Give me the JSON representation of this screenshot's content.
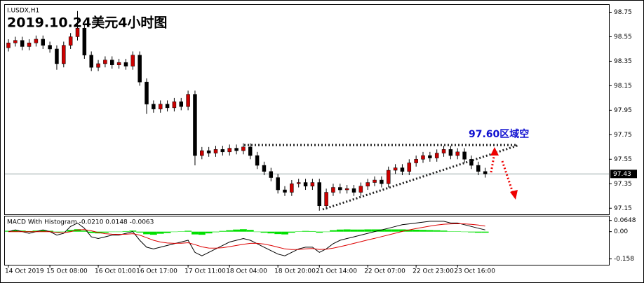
{
  "chart_data": [
    {
      "type": "candlestick",
      "symbol": "I.USDX,H1",
      "title": "2019.10.24美元4小时图",
      "annotation": "97.60区域空",
      "categories": [
        "14 Oct 2019",
        null,
        null,
        null,
        null,
        null,
        "15 Oct 08:00",
        null,
        null,
        null,
        null,
        null,
        null,
        "16 Oct 01:00",
        null,
        null,
        null,
        null,
        null,
        "16 Oct 17:00",
        null,
        null,
        null,
        null,
        null,
        null,
        "17 Oct 11:00",
        null,
        null,
        null,
        null,
        null,
        "18 Oct 04:00",
        null,
        null,
        null,
        null,
        null,
        null,
        "18 Oct 20:00",
        null,
        null,
        null,
        null,
        null,
        "21 Oct 14:00",
        null,
        null,
        null,
        null,
        null,
        null,
        "22 Oct 07:00",
        null,
        null,
        null,
        null,
        null,
        null,
        "22 Oct 23:00",
        null,
        null,
        null,
        null,
        null,
        "23 Oct 16:00",
        null,
        null,
        null,
        null
      ],
      "open": [
        98.46,
        98.5,
        98.52,
        98.47,
        98.5,
        98.53,
        98.48,
        98.45,
        98.33,
        98.48,
        98.55,
        98.62,
        98.4,
        98.3,
        98.33,
        98.36,
        98.32,
        98.34,
        98.31,
        98.4,
        98.18,
        98.0,
        97.96,
        98.0,
        97.97,
        98.02,
        97.98,
        98.08,
        97.58,
        97.62,
        97.6,
        97.63,
        97.61,
        97.64,
        97.62,
        97.65,
        97.58,
        97.5,
        97.45,
        97.4,
        97.3,
        97.28,
        97.35,
        97.36,
        97.33,
        97.36,
        97.17,
        97.28,
        97.32,
        97.3,
        97.31,
        97.28,
        97.33,
        97.36,
        97.38,
        97.35,
        97.46,
        97.48,
        97.45,
        97.52,
        97.55,
        97.58,
        97.56,
        97.6,
        97.63,
        97.58,
        97.61,
        97.55,
        97.5,
        97.45
      ],
      "high": [
        98.53,
        98.55,
        98.55,
        98.53,
        98.56,
        98.56,
        98.51,
        98.48,
        98.51,
        98.58,
        98.76,
        98.65,
        98.43,
        98.36,
        98.39,
        98.39,
        98.37,
        98.37,
        98.43,
        98.43,
        98.21,
        98.03,
        98.03,
        98.03,
        98.05,
        98.05,
        98.11,
        98.11,
        97.65,
        97.65,
        97.66,
        97.66,
        97.67,
        97.67,
        97.68,
        97.68,
        97.61,
        97.53,
        97.48,
        97.43,
        97.33,
        97.38,
        97.39,
        97.39,
        97.39,
        97.39,
        97.31,
        97.35,
        97.35,
        97.34,
        97.34,
        97.36,
        97.39,
        97.41,
        97.41,
        97.49,
        97.51,
        97.51,
        97.55,
        97.58,
        97.61,
        97.61,
        97.63,
        97.66,
        97.66,
        97.64,
        97.64,
        97.58,
        97.53,
        97.48
      ],
      "low": [
        98.43,
        98.47,
        98.44,
        98.44,
        98.47,
        98.45,
        98.42,
        98.28,
        98.3,
        98.45,
        98.52,
        98.37,
        98.27,
        98.27,
        98.3,
        98.29,
        98.29,
        98.28,
        98.28,
        98.15,
        97.92,
        97.93,
        97.93,
        97.94,
        97.94,
        97.95,
        97.95,
        97.5,
        97.55,
        97.57,
        97.57,
        97.58,
        97.58,
        97.59,
        97.59,
        97.55,
        97.47,
        97.42,
        97.37,
        97.27,
        97.25,
        97.25,
        97.32,
        97.3,
        97.3,
        97.13,
        97.14,
        97.25,
        97.27,
        97.27,
        97.25,
        97.25,
        97.3,
        97.33,
        97.32,
        97.32,
        97.43,
        97.42,
        97.42,
        97.49,
        97.52,
        97.53,
        97.53,
        97.57,
        97.55,
        97.55,
        97.52,
        97.47,
        97.42,
        97.4
      ],
      "close": [
        98.5,
        98.52,
        98.47,
        98.5,
        98.53,
        98.48,
        98.45,
        98.33,
        98.48,
        98.55,
        98.62,
        98.4,
        98.3,
        98.33,
        98.36,
        98.32,
        98.34,
        98.31,
        98.4,
        98.18,
        98.0,
        97.96,
        98.0,
        97.97,
        98.02,
        97.98,
        98.08,
        97.58,
        97.62,
        97.6,
        97.63,
        97.61,
        97.64,
        97.62,
        97.65,
        97.58,
        97.5,
        97.45,
        97.4,
        97.3,
        97.28,
        97.35,
        97.36,
        97.33,
        97.36,
        97.17,
        97.28,
        97.32,
        97.3,
        97.31,
        97.28,
        97.33,
        97.36,
        97.38,
        97.35,
        97.46,
        97.48,
        97.45,
        97.52,
        97.55,
        97.58,
        97.56,
        97.6,
        97.63,
        97.58,
        97.61,
        97.55,
        97.5,
        97.45,
        97.43
      ],
      "up_color": "#cc0000",
      "down_color": "#000000",
      "ylim": [
        97.1,
        98.81
      ],
      "yticks": [
        98.75,
        98.55,
        98.35,
        98.15,
        97.95,
        97.75,
        97.55,
        97.35,
        97.15
      ],
      "last_price": 97.43
    },
    {
      "type": "macd",
      "title": "MACD With Histogram -0.0210 0.0148 -0.0063",
      "histogram": {
        "color": "#00e000",
        "values": [
          0.005,
          0.008,
          0.006,
          0.003,
          0.006,
          0.008,
          0.005,
          -0.004,
          0.0,
          0.01,
          0.014,
          0.006,
          -0.008,
          -0.01,
          -0.006,
          -0.002,
          0.0,
          0.003,
          0.006,
          -0.005,
          -0.015,
          -0.018,
          -0.012,
          -0.008,
          -0.002,
          0.002,
          0.005,
          -0.016,
          -0.018,
          -0.01,
          -0.003,
          0.004,
          0.008,
          0.012,
          0.014,
          0.01,
          0.0,
          -0.006,
          -0.01,
          -0.014,
          -0.016,
          -0.006,
          0.002,
          0.004,
          0.003,
          -0.006,
          0.0,
          0.008,
          0.012,
          0.013,
          0.012,
          0.012,
          0.013,
          0.013,
          0.013,
          0.013,
          0.013,
          0.013,
          0.012,
          0.011,
          0.01,
          0.009,
          0.008,
          0.006,
          0.002,
          0.001,
          -0.002,
          -0.004,
          -0.006,
          -0.006
        ]
      },
      "series": [
        {
          "color": "#000000",
          "values": [
            0.0,
            0.01,
            0.0,
            -0.01,
            0.0,
            0.01,
            0.0,
            -0.02,
            -0.01,
            0.03,
            0.05,
            0.02,
            -0.03,
            -0.04,
            -0.03,
            -0.02,
            -0.02,
            -0.01,
            0.0,
            -0.05,
            -0.09,
            -0.1,
            -0.09,
            -0.08,
            -0.07,
            -0.06,
            -0.05,
            -0.12,
            -0.14,
            -0.12,
            -0.1,
            -0.08,
            -0.06,
            -0.05,
            -0.04,
            -0.05,
            -0.07,
            -0.09,
            -0.11,
            -0.13,
            -0.14,
            -0.12,
            -0.1,
            -0.09,
            -0.09,
            -0.12,
            -0.1,
            -0.07,
            -0.05,
            -0.04,
            -0.03,
            -0.02,
            -0.01,
            0.0,
            0.01,
            0.02,
            0.03,
            0.04,
            0.045,
            0.05,
            0.055,
            0.06,
            0.06,
            0.06,
            0.05,
            0.05,
            0.04,
            0.03,
            0.02,
            0.01
          ]
        },
        {
          "color": "#dd0000",
          "values": [
            0.0,
            0.0,
            0.0,
            0.0,
            0.0,
            0.0,
            0.0,
            -0.005,
            -0.007,
            0.0,
            0.01,
            0.012,
            0.005,
            -0.005,
            -0.012,
            -0.015,
            -0.016,
            -0.015,
            -0.012,
            -0.02,
            -0.035,
            -0.05,
            -0.06,
            -0.066,
            -0.068,
            -0.067,
            -0.064,
            -0.075,
            -0.088,
            -0.095,
            -0.096,
            -0.093,
            -0.087,
            -0.08,
            -0.073,
            -0.068,
            -0.068,
            -0.072,
            -0.08,
            -0.09,
            -0.1,
            -0.104,
            -0.103,
            -0.1,
            -0.098,
            -0.103,
            -0.102,
            -0.096,
            -0.087,
            -0.078,
            -0.068,
            -0.058,
            -0.048,
            -0.039,
            -0.029,
            -0.019,
            -0.009,
            0.001,
            0.01,
            0.018,
            0.025,
            0.032,
            0.038,
            0.043,
            0.045,
            0.046,
            0.045,
            0.042,
            0.038,
            0.032
          ]
        }
      ],
      "ylim": [
        -0.192,
        0.088
      ],
      "yticks": [
        0.0648,
        {
          "value": 0,
          "label": "0.00"
        },
        -0.158
      ]
    }
  ]
}
